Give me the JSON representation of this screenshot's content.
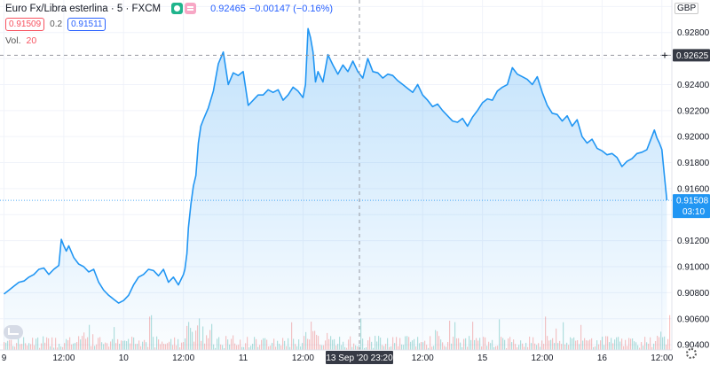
{
  "legend": {
    "symbol_title": "Euro Fx/Libra esterlina · 5 · FXCM",
    "last_price": "0.92465",
    "change": "−0.00147 (−0.16%)",
    "bid": "0.91509",
    "spread": "0.2",
    "ask": "0.91511",
    "volume_label": "Vol.",
    "volume_value": "20"
  },
  "currency_label": "GBP",
  "crosshair": {
    "price_label": "0.92625",
    "time_label": "13 Sep '20   23:20"
  },
  "current": {
    "price_label": "0.91508",
    "countdown": "03:10"
  },
  "colors": {
    "line": "#2196f3",
    "fill": "#2196f3",
    "vol_up": "#26a69a",
    "vol_down": "#ef5350",
    "grid": "#f0f3fa",
    "axis_text": "#131722",
    "crosshair": "#9598a1"
  },
  "chart_data": {
    "type": "area",
    "yaxis": {
      "ticks": [
        0.904,
        0.906,
        0.908,
        0.91,
        0.912,
        0.914,
        0.916,
        0.918,
        0.92,
        0.922,
        0.924,
        0.926,
        0.928,
        0.93
      ],
      "tick_labels": [
        "0.90400",
        "0.90600",
        "0.90800",
        "0.91000",
        "0.91200",
        "0.91400",
        "0.91600",
        "0.91800",
        "0.92000",
        "0.92200",
        "0.92400",
        "0.92600",
        "0.92800",
        "0.93000"
      ],
      "ylim": [
        0.9036,
        0.9305
      ]
    },
    "xaxis": {
      "tick_labels": [
        "9",
        "12:00",
        "10",
        "12:00",
        "11",
        "12:00",
        "12:00",
        "15",
        "12:00",
        "16",
        "12:00"
      ],
      "tick_x": [
        0.0,
        12.0,
        24.0,
        36.0,
        48.0,
        60.0,
        84.0,
        96.0,
        108.0,
        120.0,
        132.0
      ],
      "xlim": [
        -0.8,
        134.0
      ],
      "unit": "hours since 9 Sep 00:00, weekend gap removed"
    },
    "x": [
      0,
      1,
      2,
      3,
      4,
      5,
      6,
      7,
      8,
      9,
      10,
      11,
      11.5,
      12,
      12.5,
      13,
      14,
      15,
      16,
      17,
      18,
      19,
      20,
      21,
      22,
      23,
      24,
      25,
      26,
      27,
      28,
      29,
      30,
      31,
      32,
      33,
      34,
      35,
      36,
      36.3,
      36.7,
      37,
      37.5,
      38,
      38.5,
      39,
      39.5,
      40,
      41,
      42,
      43,
      44,
      45,
      46,
      47,
      48,
      49,
      50,
      50.5,
      51,
      52,
      53,
      54,
      55,
      56,
      57,
      58,
      59,
      60,
      60.5,
      61,
      61.5,
      62,
      62.5,
      63,
      64,
      65,
      66,
      67,
      68,
      69,
      70,
      71,
      72,
      73,
      74,
      75,
      76,
      77,
      78,
      79,
      80,
      81,
      82,
      83,
      84,
      85,
      86,
      87,
      88,
      89,
      90,
      91,
      92,
      93,
      94,
      95,
      96,
      97,
      98,
      99,
      100,
      101,
      102,
      103,
      104,
      105,
      106,
      107,
      108,
      109,
      110,
      111,
      112,
      113,
      114,
      115,
      116,
      117,
      118,
      119,
      120,
      121,
      122,
      123,
      124,
      125,
      126,
      127,
      128,
      129,
      130,
      130.5,
      131,
      131.5,
      132,
      132.5,
      133
    ],
    "values": [
      0.9079,
      0.9082,
      0.9085,
      0.9088,
      0.9089,
      0.9092,
      0.9094,
      0.9098,
      0.9099,
      0.9094,
      0.9098,
      0.9101,
      0.9121,
      0.9116,
      0.9112,
      0.9116,
      0.9107,
      0.9102,
      0.91,
      0.9096,
      0.9098,
      0.9088,
      0.9082,
      0.9078,
      0.9075,
      0.9072,
      0.9074,
      0.9078,
      0.9086,
      0.9092,
      0.9094,
      0.9098,
      0.9097,
      0.9093,
      0.9098,
      0.9088,
      0.9092,
      0.9086,
      0.9094,
      0.9098,
      0.911,
      0.913,
      0.9148,
      0.9162,
      0.917,
      0.9195,
      0.9208,
      0.9213,
      0.9222,
      0.9235,
      0.9256,
      0.9265,
      0.924,
      0.9249,
      0.9247,
      0.925,
      0.9224,
      0.9228,
      0.923,
      0.9232,
      0.9232,
      0.9236,
      0.9234,
      0.9236,
      0.9228,
      0.9232,
      0.9238,
      0.9235,
      0.923,
      0.924,
      0.9283,
      0.9276,
      0.9265,
      0.9242,
      0.925,
      0.9242,
      0.9263,
      0.9255,
      0.9248,
      0.9255,
      0.925,
      0.9258,
      0.925,
      0.9245,
      0.926,
      0.925,
      0.9249,
      0.9245,
      0.9248,
      0.9247,
      0.9243,
      0.924,
      0.9237,
      0.9234,
      0.924,
      0.9232,
      0.9228,
      0.9223,
      0.9225,
      0.922,
      0.9216,
      0.9212,
      0.9211,
      0.9214,
      0.9208,
      0.9215,
      0.922,
      0.9226,
      0.9229,
      0.9228,
      0.9235,
      0.9238,
      0.924,
      0.9253,
      0.9248,
      0.9246,
      0.9244,
      0.924,
      0.9246,
      0.9234,
      0.9224,
      0.9218,
      0.9217,
      0.9212,
      0.9216,
      0.9208,
      0.9213,
      0.92,
      0.9195,
      0.9198,
      0.9191,
      0.9189,
      0.9186,
      0.9187,
      0.9184,
      0.9177,
      0.9181,
      0.9183,
      0.9187,
      0.9188,
      0.919,
      0.92,
      0.9205,
      0.9199,
      0.9195,
      0.919,
      0.917,
      0.9151
    ]
  }
}
